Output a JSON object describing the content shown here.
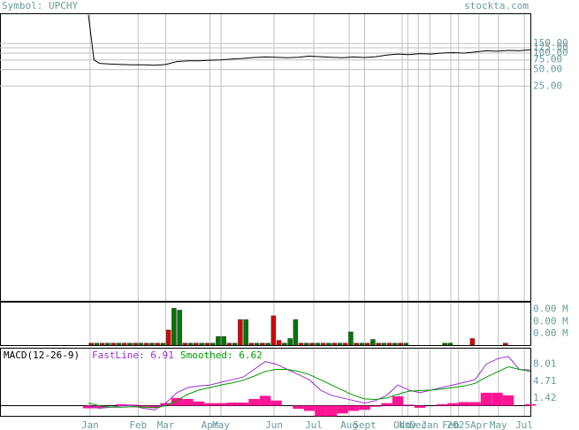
{
  "chart_data": [
    {
      "type": "line",
      "title": "Symbol: UPCHY",
      "source": "stockta.com",
      "log": true,
      "grid": true,
      "color": "#000000",
      "xlim": [
        0,
        80
      ],
      "ylim": [
        0.003,
        514
      ],
      "xticks": [
        {
          "value": 0.3,
          "label": "Jan"
        },
        {
          "value": 9,
          "label": "Feb"
        },
        {
          "value": 14,
          "label": "Mar"
        },
        {
          "value": 22,
          "label": "Apr"
        },
        {
          "value": 24,
          "label": "May"
        },
        {
          "value": 33.6,
          "label": "Jun"
        },
        {
          "value": 40.8,
          "label": "Jul"
        },
        {
          "value": 47.2,
          "label": "Aug"
        },
        {
          "value": 50,
          "label": "Sept"
        },
        {
          "value": 56.8,
          "label": "Oct"
        },
        {
          "value": 57.8,
          "label": "Nov"
        },
        {
          "value": 59.7,
          "label": "Dec"
        },
        {
          "value": 61.8,
          "label": "Jan"
        },
        {
          "value": 65.6,
          "label": "Feb"
        },
        {
          "value": 67,
          "label": "2025"
        },
        {
          "value": 70.7,
          "label": "Apr"
        },
        {
          "value": 74.2,
          "label": "May"
        },
        {
          "value": 78.9,
          "label": "Jul"
        }
      ],
      "yticks": [
        {
          "value": 150,
          "label": "150.00"
        },
        {
          "value": 125,
          "label": "125.00"
        },
        {
          "value": 100,
          "label": "100.00"
        },
        {
          "value": 75,
          "label": "75.00"
        },
        {
          "value": 50,
          "label": "50.00"
        },
        {
          "value": 25,
          "label": "25.00"
        }
      ],
      "x": [
        0,
        1,
        2,
        4,
        6,
        8,
        10,
        12,
        14,
        16,
        18,
        20,
        22,
        24,
        26,
        28,
        30,
        32,
        34,
        36,
        38,
        40,
        42,
        44,
        46,
        48,
        50,
        52,
        54,
        56,
        58,
        60,
        62,
        64,
        66,
        68,
        70,
        72,
        74,
        76,
        78,
        80
      ],
      "values": [
        500,
        75,
        65,
        63,
        62,
        61,
        61,
        60,
        62,
        70,
        72,
        72,
        74,
        75,
        78,
        80,
        83,
        85,
        84,
        82,
        84,
        88,
        86,
        84,
        82,
        85,
        83,
        86,
        92,
        96,
        94,
        98,
        96,
        100,
        102,
        100,
        105,
        110,
        108,
        112,
        110,
        115
      ]
    },
    {
      "type": "bar",
      "xlim": [
        0,
        80
      ],
      "ylim": [
        0,
        0.0045
      ],
      "yticks": [
        {
          "value": 0.0038,
          "label": "0.00 M"
        },
        {
          "value": 0.0025,
          "label": "0.00 M"
        },
        {
          "value": 0.0012,
          "label": "0.00 M"
        }
      ],
      "values": [
        0.0002,
        0.0002,
        0.0002,
        0.0002,
        0.0002,
        0.0002,
        0.0002,
        0.0002,
        0.0002,
        0.0002,
        0.0002,
        0.0002,
        0.0002,
        0.0002,
        0.0016,
        0.0039,
        0.0037,
        0.0002,
        0.0002,
        0.0002,
        0.0002,
        0.0002,
        0.0002,
        0.0009,
        0.0009,
        0.0002,
        0.0002,
        0.0027,
        0.0027,
        0.0002,
        0.0002,
        0.0002,
        0.0002,
        0.0031,
        0.0005,
        0.0002,
        0.0007,
        0.0027,
        0.0002,
        0.0002,
        0.0002,
        0.0002,
        0.0002,
        0.0002,
        0.0002,
        0.0002,
        0.0002,
        0.0014,
        0.0002,
        0.0002,
        0.0002,
        0.0006,
        0.0002,
        0.0002,
        0.0002,
        0.0002,
        0.0002,
        0.0002,
        null,
        null,
        null,
        null,
        null,
        null,
        0.0002,
        0.0002,
        null,
        null,
        null,
        0.0007,
        null,
        null,
        null,
        null,
        null,
        0.0002,
        null,
        null,
        null
      ],
      "colors": [
        "#dd0000",
        "#007700",
        "#dd0000",
        "#007700",
        "#dd0000",
        "#007700",
        "#dd0000",
        "#007700",
        "#dd0000",
        "#007700",
        "#dd0000",
        "#007700",
        "#dd0000",
        "#007700",
        "#dd0000",
        "#007700",
        "#007700",
        "#dd0000",
        "#007700",
        "#dd0000",
        "#007700",
        "#dd0000",
        "#007700",
        "#007700",
        "#007700",
        "#dd0000",
        "#007700",
        "#dd0000",
        "#007700",
        "#dd0000",
        "#007700",
        "#dd0000",
        "#007700",
        "#dd0000",
        "#dd0000",
        "#007700",
        "#007700",
        "#007700",
        "#dd0000",
        "#007700",
        "#dd0000",
        "#007700",
        "#dd0000",
        "#007700",
        "#dd0000",
        "#007700",
        "#dd0000",
        "#007700",
        "#dd0000",
        "#007700",
        "#dd0000",
        "#007700",
        "#dd0000",
        "#007700",
        "#dd0000",
        "#007700",
        "#dd0000",
        "#007700",
        null,
        null,
        null,
        null,
        null,
        null,
        "#007700",
        "#007700",
        null,
        null,
        null,
        "#dd0000",
        null,
        null,
        null,
        null,
        null,
        "#dd0000",
        null,
        null,
        null
      ]
    },
    {
      "type": "line",
      "title": "MACD(12-26-9)",
      "xlim": [
        0,
        80
      ],
      "ylim": [
        -1.95,
        11.0
      ],
      "yticks": [
        8.01,
        4.71,
        1.42
      ],
      "x": [
        0,
        2,
        4,
        6,
        8,
        10,
        12,
        14,
        16,
        18,
        20,
        22,
        24,
        26,
        28,
        30,
        32,
        34,
        36,
        38,
        40,
        42,
        44,
        46,
        48,
        50,
        52,
        54,
        56,
        58,
        60,
        62,
        64,
        66,
        68,
        70,
        72,
        74,
        76,
        78,
        80
      ],
      "series": [
        {
          "name": "FastLine: 6.91",
          "color": "#9933cc",
          "values": [
            0,
            -0.5,
            -0.3,
            0,
            0,
            -0.5,
            -0.8,
            0.5,
            2.5,
            3.5,
            3.8,
            4.0,
            4.5,
            5,
            5.5,
            7,
            8.5,
            8,
            7,
            6,
            5,
            3,
            2,
            1.5,
            1,
            0.5,
            1,
            2,
            4,
            3,
            2.5,
            3,
            3.5,
            4,
            4.5,
            5,
            8,
            9,
            9.5,
            7,
            6.9
          ]
        },
        {
          "name": "Smoothed: 6.62",
          "color": "#009900",
          "values": [
            0.5,
            0,
            -0.3,
            -0.3,
            -0.2,
            -0.3,
            -0.4,
            0,
            1,
            2.2,
            3,
            3.5,
            4,
            4.4,
            4.9,
            5.7,
            6.6,
            7,
            7,
            6.6,
            6,
            5,
            4,
            3,
            2,
            1.3,
            1.2,
            1.5,
            2.2,
            2.8,
            2.9,
            3,
            3.2,
            3.5,
            3.8,
            4.3,
            5.5,
            6.5,
            7.5,
            7,
            6.6
          ]
        }
      ],
      "histogram": {
        "color": "#ff1493",
        "values": [
          -0.5,
          -0.5,
          0,
          0.3,
          0.2,
          -0.2,
          -0.4,
          0.5,
          1.5,
          1.3,
          0.8,
          0.5,
          0.5,
          0.6,
          0.6,
          1.3,
          1.9,
          1,
          0,
          -0.6,
          -1,
          -2,
          -2,
          -1.5,
          -1,
          -0.8,
          -0.2,
          0.5,
          1.8,
          0.2,
          -0.4,
          0,
          0.3,
          0.5,
          0.7,
          0.7,
          2.5,
          2.5,
          2,
          0,
          0.3
        ]
      }
    }
  ]
}
